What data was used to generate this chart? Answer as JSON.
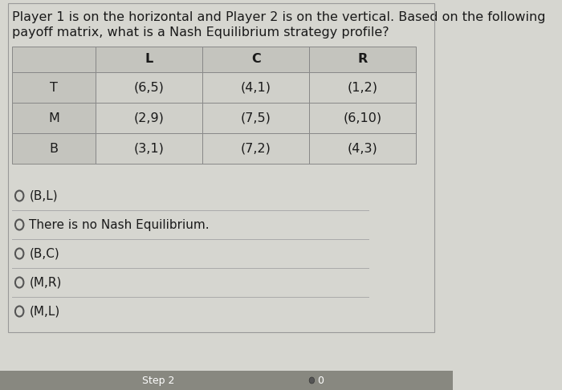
{
  "title_line1": "Player 1 is on the horizontal and Player 2 is on the vertical. Based on the following",
  "title_line2": "payoff matrix, what is a Nash Equilibrium strategy profile?",
  "col_headers": [
    "",
    "L",
    "C",
    "R"
  ],
  "row_headers": [
    "T",
    "M",
    "B"
  ],
  "cells": [
    [
      "(6,5)",
      "(4,1)",
      "(1,2)"
    ],
    [
      "(2,9)",
      "(7,5)",
      "(6,10)"
    ],
    [
      "(3,1)",
      "(7,2)",
      "(4,3)"
    ]
  ],
  "options": [
    "(B,L)",
    "There is no Nash Equilibrium.",
    "(B,C)",
    "(M,R)",
    "(M,L)"
  ],
  "bg_color": "#d6d6d0",
  "cell_bg": "#d0d0ca",
  "header_cell_bg": "#c4c4be",
  "border_color": "#888888",
  "text_color": "#1a1a1a",
  "footer_bg": "#888880",
  "footer_text": "Step 2",
  "title_fontsize": 11.5,
  "table_fontsize": 11.5,
  "option_fontsize": 11.0
}
